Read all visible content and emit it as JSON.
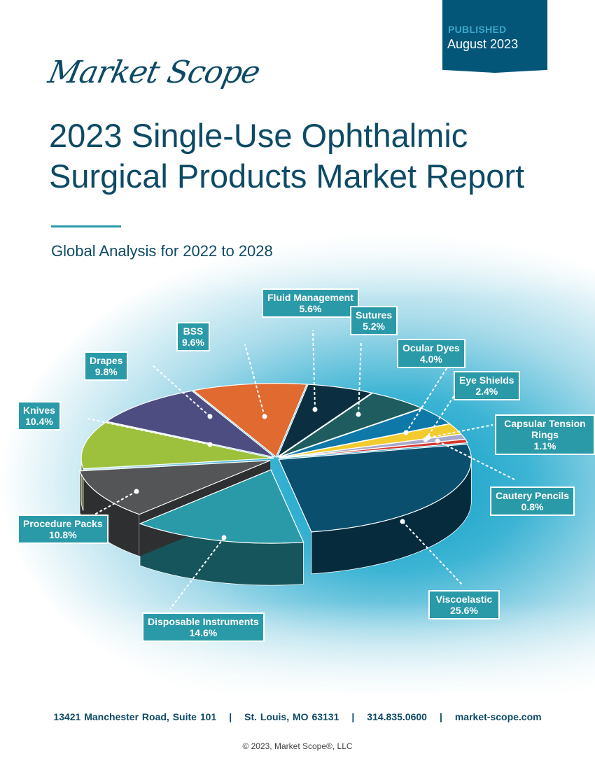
{
  "header": {
    "published_label": "PUBLISHED",
    "published_date": "August 2023",
    "logo": "Market Scope"
  },
  "title": "2023 Single-Use Ophthalmic Surgical Products Market Report",
  "subtitle": "Global Analysis for 2022 to 2028",
  "chart_data": {
    "type": "pie",
    "title": "",
    "style": "3d-exploded",
    "slices": [
      {
        "label": "Viscoelastic",
        "value": 25.6,
        "display": "25.6%",
        "color": "#0a4f6e"
      },
      {
        "label": "Disposable Instruments",
        "value": 14.6,
        "display": "14.6%",
        "color": "#2a9aa8"
      },
      {
        "label": "Procedure Packs",
        "value": 10.8,
        "display": "10.8%",
        "color": "#545557"
      },
      {
        "label": "Knives",
        "value": 10.4,
        "display": "10.4%",
        "color": "#9dc13d"
      },
      {
        "label": "Drapes",
        "value": 9.8,
        "display": "9.8%",
        "color": "#4d4d82"
      },
      {
        "label": "BSS",
        "value": 9.6,
        "display": "9.6%",
        "color": "#e06a30"
      },
      {
        "label": "Fluid Management",
        "value": 5.6,
        "display": "5.6%",
        "color": "#0b2f40"
      },
      {
        "label": "Sutures",
        "value": 5.2,
        "display": "5.2%",
        "color": "#1e5c5f"
      },
      {
        "label": "Ocular Dyes",
        "value": 4.0,
        "display": "4.0%",
        "color": "#0e78a8"
      },
      {
        "label": "Eye Shields",
        "value": 2.4,
        "display": "2.4%",
        "color": "#f2cc2e"
      },
      {
        "label": "Capsular Tension Rings",
        "value": 1.1,
        "display": "1.1%",
        "color": "#a8a8cc"
      },
      {
        "label": "Cautery Pencils",
        "value": 0.8,
        "display": "0.8%",
        "color": "#d6372e"
      }
    ]
  },
  "footer": {
    "address": "13421 Manchester Road, Suite 101",
    "city": "St. Louis, MO 63131",
    "phone": "314.835.0600",
    "web": "market-scope.com",
    "sep": "|"
  },
  "copyright": "© 2023, Market Scope®, LLC"
}
